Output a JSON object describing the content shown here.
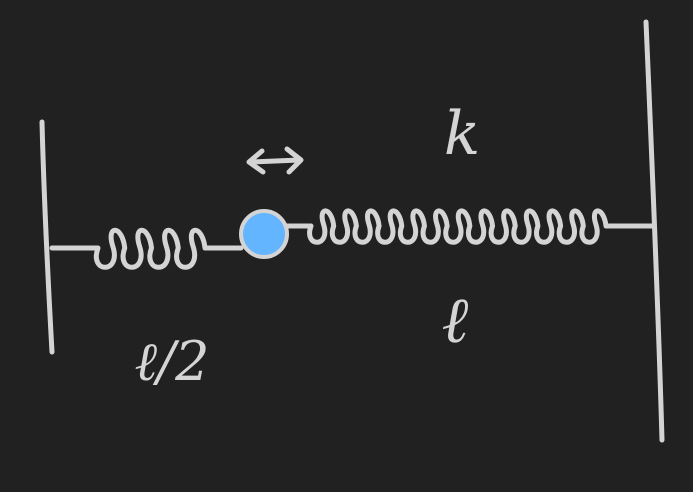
{
  "diagram": {
    "colors": {
      "background": "#212121",
      "ink": "#d4d4d4",
      "mass_fill": "#64b5ff",
      "mass_outline": "#d4d4d4"
    },
    "left_spring": {
      "length_label": "ℓ/2",
      "coils": 4
    },
    "right_spring": {
      "length_label": "ℓ",
      "stiffness_label": "k",
      "coils": 13
    },
    "mass": {
      "motion_indicator": "double-headed-arrow"
    }
  }
}
